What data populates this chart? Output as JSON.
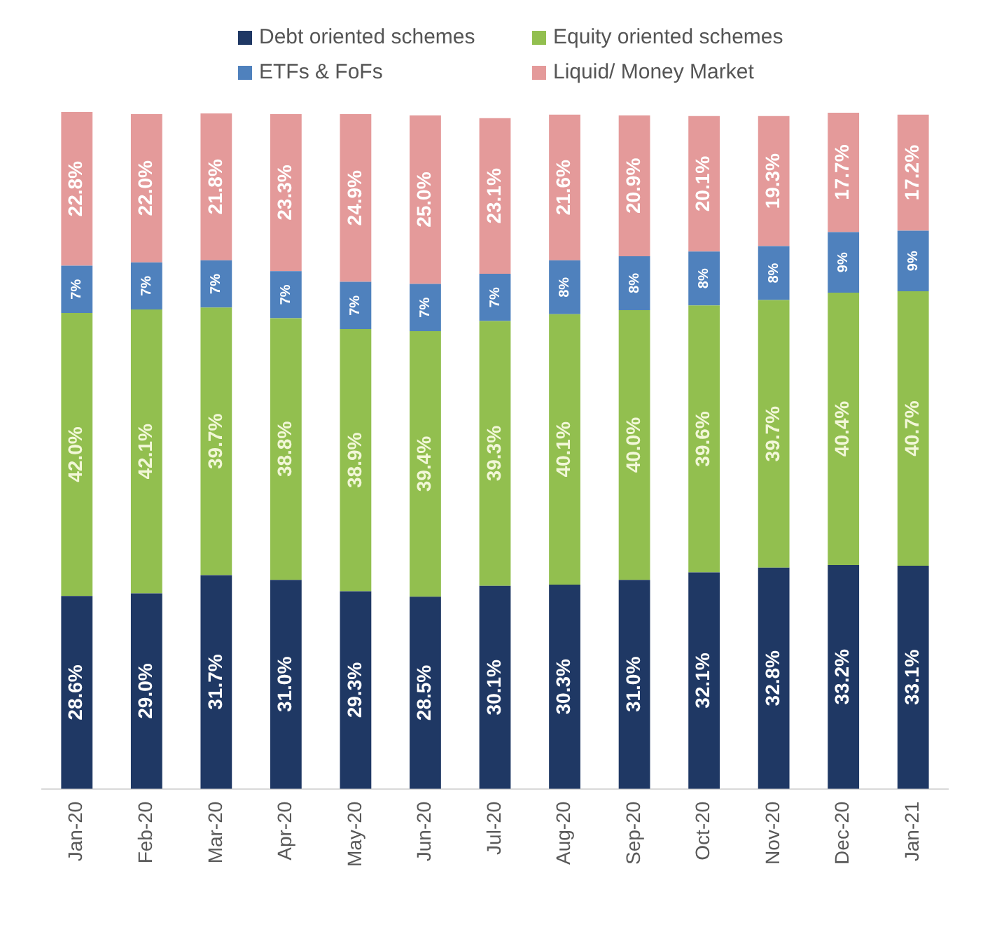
{
  "chart_data": {
    "type": "bar",
    "stacked": true,
    "legend": "top",
    "grid": false,
    "categories": [
      "Jan-20",
      "Feb-20",
      "Mar-20",
      "Apr-20",
      "May-20",
      "Jun-20",
      "Jul-20",
      "Aug-20",
      "Sep-20",
      "Oct-20",
      "Nov-20",
      "Dec-20",
      "Jan-21"
    ],
    "series": [
      {
        "name": "Debt oriented schemes",
        "color": "#1f3864",
        "values": [
          28.6,
          29.0,
          31.7,
          31.0,
          29.3,
          28.5,
          30.1,
          30.3,
          31.0,
          32.1,
          32.8,
          33.2,
          33.1
        ],
        "value_labels": [
          "28.6%",
          "29.0%",
          "31.7%",
          "31.0%",
          "29.3%",
          "28.5%",
          "30.1%",
          "30.3%",
          "31.0%",
          "32.1%",
          "32.8%",
          "33.2%",
          "33.1%"
        ]
      },
      {
        "name": "Equity oriented schemes",
        "color": "#92bf4f",
        "values": [
          42.0,
          42.1,
          39.7,
          38.8,
          38.9,
          39.4,
          39.3,
          40.1,
          40.0,
          39.6,
          39.7,
          40.4,
          40.7
        ],
        "value_labels": [
          "42.0%",
          "42.1%",
          "39.7%",
          "38.8%",
          "38.9%",
          "39.4%",
          "39.3%",
          "40.1%",
          "40.0%",
          "39.6%",
          "39.7%",
          "40.4%",
          "40.7%"
        ]
      },
      {
        "name": "ETFs & FoFs",
        "color": "#4f81bd",
        "values": [
          7,
          7,
          7,
          7,
          7,
          7,
          7,
          8,
          8,
          8,
          8,
          9,
          9
        ],
        "value_labels": [
          "7%",
          "7%",
          "7%",
          "7%",
          "7%",
          "7%",
          "7%",
          "8%",
          "8%",
          "8%",
          "8%",
          "9%",
          "9%"
        ]
      },
      {
        "name": "Liquid/ Money Market",
        "color": "#e49a9a",
        "values": [
          22.8,
          22.0,
          21.8,
          23.3,
          24.9,
          25.0,
          23.1,
          21.6,
          20.9,
          20.1,
          19.3,
          17.7,
          17.2
        ],
        "value_labels": [
          "22.8%",
          "22.0%",
          "21.8%",
          "23.3%",
          "24.9%",
          "25.0%",
          "23.1%",
          "21.6%",
          "20.9%",
          "20.1%",
          "19.3%",
          "17.7%",
          "17.2%"
        ]
      }
    ]
  }
}
